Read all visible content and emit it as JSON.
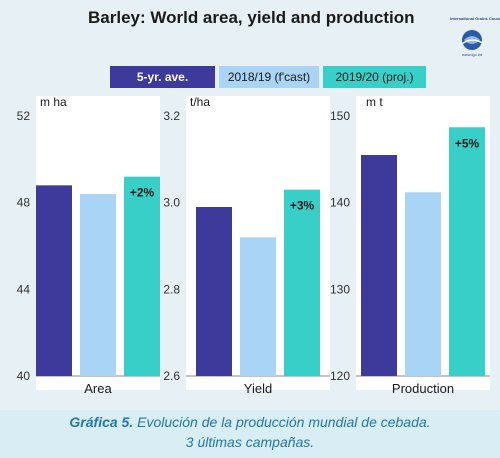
{
  "header": {
    "title": "Barley: World area, yield and production"
  },
  "logo": {
    "name": "International Grains Council",
    "url": "www.igc.int"
  },
  "caption": {
    "label": "Gráfica 5.",
    "line1": "Evolución de la producción mundial de cebada.",
    "line2": "3 últimas campañas."
  },
  "colors": {
    "five_yr": "#3d3a9c",
    "forecast": "#a9d4f5",
    "projection": "#37cfc8",
    "background": "#e6f0f5"
  },
  "chart_data": [
    {
      "type": "bar",
      "xlabel": "Area",
      "unit": "m ha",
      "ylim": [
        40,
        52
      ],
      "yticks": [
        "52",
        "48",
        "44",
        "40"
      ],
      "categories": [
        "5-yr. ave.",
        "2018/19 (f'cast)",
        "2019/20 (proj.)"
      ],
      "values": [
        48.8,
        48.4,
        49.2
      ],
      "annotation": "+2%"
    },
    {
      "type": "bar",
      "xlabel": "Yield",
      "unit": "t/ha",
      "ylim": [
        2.6,
        3.2
      ],
      "yticks": [
        "3.2",
        "3.0",
        "2.8",
        "2.6"
      ],
      "categories": [
        "5-yr. ave.",
        "2018/19 (f'cast)",
        "2019/20 (proj.)"
      ],
      "values": [
        2.99,
        2.92,
        3.03
      ],
      "annotation": "+3%"
    },
    {
      "type": "bar",
      "xlabel": "Production",
      "unit": "m t",
      "ylim": [
        120,
        150
      ],
      "yticks": [
        "150",
        "140",
        "130",
        "120"
      ],
      "categories": [
        "5-yr. ave.",
        "2018/19 (f'cast)",
        "2019/20 (proj.)"
      ],
      "values": [
        145.5,
        141.2,
        148.7
      ],
      "annotation": "+5%"
    }
  ],
  "legend": {
    "five_yr": "5-yr. ave.",
    "forecast": "2018/19 (f'cast)",
    "projection": "2019/20 (proj.)"
  }
}
